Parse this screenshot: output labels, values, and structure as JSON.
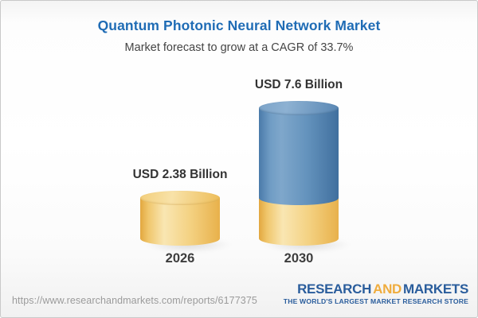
{
  "header": {
    "title": "Quantum Photonic Neural Network Market",
    "subtitle": "Market forecast to grow at a CAGR of 33.7%"
  },
  "chart_data": {
    "type": "bar",
    "style": "3d-cylinder",
    "unit": "USD Billion",
    "categories": [
      "2026",
      "2030"
    ],
    "values": [
      2.38,
      7.6
    ],
    "cagr_percent": 33.7,
    "legend": "none",
    "axes": "none",
    "bars": [
      {
        "category": "2026",
        "total": 2.38,
        "label": "USD 2.38 Billion",
        "segments": [
          {
            "color": "gold",
            "value": 2.38
          }
        ]
      },
      {
        "category": "2030",
        "total": 7.6,
        "label": "USD 7.6 Billion",
        "segments": [
          {
            "color": "gold",
            "value": 2.38
          },
          {
            "color": "blue",
            "value": 5.22
          }
        ]
      }
    ],
    "colors": {
      "gold": "#f0c96e",
      "blue": "#6493bd"
    }
  },
  "footer": {
    "url": "https://www.researchandmarkets.com/reports/6177375",
    "logo": {
      "word1": "RESEARCH",
      "word2": "AND",
      "word3": "MARKETS",
      "tagline": "THE WORLD'S LARGEST MARKET RESEARCH STORE"
    }
  },
  "theme_colors": {
    "title_blue": "#1f6cb5",
    "logo_blue": "#2a5d9c",
    "logo_gold": "#efac3d"
  }
}
